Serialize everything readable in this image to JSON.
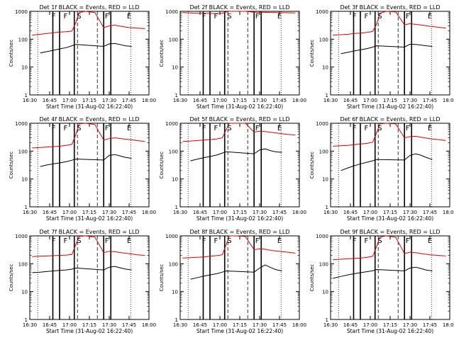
{
  "figure": {
    "background": "#ffffff",
    "colors": {
      "events": "#000000",
      "lld": "#e00000",
      "axes": "#000000"
    },
    "xlabel": "Start Time (31-Aug-02 16:22:40)",
    "ylabel": "Counts/sec",
    "x_tick_labels": [
      "16:30",
      "16:45",
      "17:00",
      "17:15",
      "17:30",
      "17:45",
      "18:00"
    ],
    "y_tick_labels": [
      "1",
      "10",
      "100",
      "1000"
    ],
    "markers": [
      "F",
      "F",
      "S",
      "F",
      "E"
    ]
  },
  "chart_data": [
    {
      "type": "line",
      "title": "Det 1f BLACK = Events, RED = LLD",
      "xlabel": "Start Time (31-Aug-02 16:22:40)",
      "ylabel": "Counts/sec",
      "x_range_hours": [
        16.5,
        18.0
      ],
      "y_scale": "log",
      "ylim": [
        1,
        1000
      ],
      "series": [
        {
          "name": "Events",
          "color": "#000000",
          "x_hours": [
            16.63,
            16.72,
            16.8,
            16.88,
            16.96,
            17.03,
            17.08,
            17.43,
            17.5,
            17.57,
            17.63,
            17.7,
            17.78
          ],
          "values": [
            32,
            36,
            40,
            45,
            50,
            58,
            65,
            55,
            68,
            70,
            65,
            58,
            55
          ]
        },
        {
          "name": "LLD",
          "color": "#e00000",
          "x_hours": [
            16.53,
            16.63,
            16.72,
            16.8,
            16.88,
            16.96,
            17.03,
            17.08,
            17.12,
            17.2,
            17.32,
            17.43,
            17.5,
            17.57,
            17.65,
            17.75,
            17.85,
            17.95
          ],
          "values": [
            140,
            150,
            160,
            170,
            180,
            185,
            195,
            400,
            900,
            1000,
            900,
            260,
            300,
            320,
            290,
            260,
            250,
            240
          ]
        }
      ],
      "annotations": [
        "F",
        "F",
        "S",
        "F",
        "E"
      ]
    },
    {
      "type": "line",
      "title": "Det 2f BLACK = Events, RED = LLD",
      "xlabel": "Start Time (31-Aug-02 16:22:40)",
      "ylabel": "Counts/sec",
      "x_range_hours": [
        16.5,
        18.0
      ],
      "y_scale": "log",
      "ylim": [
        1,
        1000
      ],
      "series": [
        {
          "name": "LLD",
          "color": "#e00000",
          "x_hours": [
            16.53,
            16.63,
            16.72,
            16.8,
            16.88,
            16.96,
            17.03,
            17.08,
            17.12,
            17.2,
            17.32,
            17.43,
            17.55,
            17.65,
            17.75,
            17.85,
            17.95
          ],
          "values": [
            900,
            880,
            860,
            850,
            840,
            830,
            860,
            950,
            1000,
            1000,
            1000,
            930,
            920,
            910,
            900,
            890,
            880
          ]
        }
      ],
      "annotations": [
        "F",
        "F",
        "S",
        "F",
        "E"
      ]
    },
    {
      "type": "line",
      "title": "Det 3f BLACK = Events, RED = LLD",
      "xlabel": "Start Time (31-Aug-02 16:22:40)",
      "ylabel": "Counts/sec",
      "x_range_hours": [
        16.5,
        18.0
      ],
      "y_scale": "log",
      "ylim": [
        1,
        1000
      ],
      "series": [
        {
          "name": "Events",
          "color": "#000000",
          "x_hours": [
            16.63,
            16.72,
            16.8,
            16.88,
            16.96,
            17.03,
            17.08,
            17.43,
            17.5,
            17.57,
            17.63,
            17.7,
            17.78
          ],
          "values": [
            30,
            34,
            38,
            42,
            46,
            52,
            58,
            52,
            66,
            65,
            62,
            58,
            55
          ]
        },
        {
          "name": "LLD",
          "color": "#e00000",
          "x_hours": [
            16.53,
            16.63,
            16.72,
            16.8,
            16.88,
            16.96,
            17.03,
            17.08,
            17.12,
            17.2,
            17.32,
            17.43,
            17.5,
            17.57,
            17.65,
            17.75,
            17.85,
            17.95
          ],
          "values": [
            140,
            145,
            150,
            160,
            165,
            175,
            190,
            350,
            850,
            1000,
            950,
            330,
            360,
            340,
            320,
            290,
            270,
            250
          ]
        }
      ],
      "annotations": [
        "F",
        "F",
        "S",
        "F",
        "E"
      ]
    },
    {
      "type": "line",
      "title": "Det 4f BLACK = Events, RED = LLD",
      "xlabel": "Start Time (31-Aug-02 16:22:40)",
      "ylabel": "Counts/sec",
      "x_range_hours": [
        16.5,
        18.0
      ],
      "y_scale": "log",
      "ylim": [
        1,
        1000
      ],
      "series": [
        {
          "name": "Events",
          "color": "#000000",
          "x_hours": [
            16.63,
            16.72,
            16.8,
            16.88,
            16.96,
            17.03,
            17.08,
            17.43,
            17.5,
            17.57,
            17.63,
            17.7,
            17.78
          ],
          "values": [
            28,
            32,
            35,
            38,
            42,
            47,
            52,
            48,
            70,
            75,
            68,
            60,
            55
          ]
        },
        {
          "name": "LLD",
          "color": "#e00000",
          "x_hours": [
            16.53,
            16.63,
            16.72,
            16.8,
            16.88,
            16.96,
            17.03,
            17.08,
            17.12,
            17.2,
            17.32,
            17.43,
            17.5,
            17.57,
            17.65,
            17.75,
            17.85,
            17.95
          ],
          "values": [
            130,
            135,
            140,
            145,
            150,
            160,
            175,
            400,
            950,
            1000,
            900,
            250,
            280,
            300,
            280,
            260,
            240,
            220
          ]
        }
      ],
      "annotations": [
        "F",
        "F",
        "S",
        "F",
        "E"
      ]
    },
    {
      "type": "line",
      "title": "Det 5f BLACK = Events, RED = LLD",
      "xlabel": "Start Time (31-Aug-02 16:22:40)",
      "ylabel": "Counts/sec",
      "x_range_hours": [
        16.5,
        18.0
      ],
      "y_scale": "log",
      "ylim": [
        1,
        1000
      ],
      "series": [
        {
          "name": "Events",
          "color": "#000000",
          "x_hours": [
            16.63,
            16.72,
            16.8,
            16.88,
            16.96,
            17.03,
            17.08,
            17.43,
            17.5,
            17.57,
            17.63,
            17.7,
            17.78
          ],
          "values": [
            45,
            52,
            58,
            65,
            72,
            85,
            95,
            80,
            110,
            120,
            105,
            95,
            90
          ]
        },
        {
          "name": "LLD",
          "color": "#e00000",
          "x_hours": [
            16.53,
            16.63,
            16.72,
            16.8,
            16.88,
            16.96,
            17.03,
            17.08,
            17.12,
            17.2,
            17.32,
            17.43,
            17.5,
            17.57,
            17.65,
            17.75,
            17.85,
            17.95
          ],
          "values": [
            220,
            230,
            240,
            250,
            260,
            275,
            300,
            600,
            1000,
            1000,
            1000,
            480,
            520,
            500,
            470,
            430,
            400,
            380
          ]
        }
      ],
      "annotations": [
        "F",
        "F",
        "S",
        "F",
        "E"
      ]
    },
    {
      "type": "line",
      "title": "Det 6f BLACK = Events, RED = LLD",
      "xlabel": "Start Time (31-Aug-02 16:22:40)",
      "ylabel": "Counts/sec",
      "x_range_hours": [
        16.5,
        18.0
      ],
      "y_scale": "log",
      "ylim": [
        1,
        1000
      ],
      "series": [
        {
          "name": "Events",
          "color": "#000000",
          "x_hours": [
            16.63,
            16.72,
            16.8,
            16.88,
            16.96,
            17.03,
            17.08,
            17.43,
            17.5,
            17.57,
            17.63,
            17.7,
            17.78
          ],
          "values": [
            20,
            25,
            30,
            35,
            40,
            45,
            50,
            48,
            70,
            80,
            72,
            60,
            50
          ]
        },
        {
          "name": "LLD",
          "color": "#e00000",
          "x_hours": [
            16.53,
            16.63,
            16.72,
            16.8,
            16.88,
            16.96,
            17.03,
            17.08,
            17.12,
            17.2,
            17.32,
            17.43,
            17.5,
            17.57,
            17.65,
            17.75,
            17.85,
            17.95
          ],
          "values": [
            150,
            155,
            160,
            170,
            180,
            190,
            210,
            450,
            950,
            1000,
            950,
            300,
            330,
            340,
            310,
            280,
            260,
            240
          ]
        }
      ],
      "annotations": [
        "F",
        "F",
        "S",
        "F",
        "E"
      ]
    },
    {
      "type": "line",
      "title": "Det 7f BLACK = Events, RED = LLD",
      "xlabel": "Start Time (31-Aug-02 16:22:40)",
      "ylabel": "Counts/sec",
      "x_range_hours": [
        16.5,
        18.0
      ],
      "y_scale": "log",
      "ylim": [
        1,
        1000
      ],
      "series": [
        {
          "name": "Events",
          "color": "#000000",
          "x_hours": [
            16.53,
            16.63,
            16.72,
            16.8,
            16.88,
            16.96,
            17.03,
            17.08,
            17.43,
            17.5,
            17.57,
            17.63,
            17.7,
            17.78
          ],
          "values": [
            48,
            50,
            53,
            55,
            58,
            60,
            64,
            70,
            60,
            75,
            80,
            72,
            65,
            60
          ]
        },
        {
          "name": "LLD",
          "color": "#e00000",
          "x_hours": [
            16.53,
            16.63,
            16.72,
            16.8,
            16.88,
            16.96,
            17.03,
            17.08,
            17.12,
            17.2,
            17.32,
            17.43,
            17.5,
            17.57,
            17.65,
            17.75,
            17.85,
            17.95
          ],
          "values": [
            180,
            185,
            190,
            195,
            200,
            205,
            215,
            500,
            950,
            1000,
            900,
            250,
            280,
            270,
            250,
            230,
            210,
            200
          ]
        }
      ],
      "annotations": [
        "F",
        "F",
        "S",
        "F",
        "E"
      ]
    },
    {
      "type": "line",
      "title": "Det 8f BLACK = Events, RED = LLD",
      "xlabel": "Start Time (31-Aug-02 16:22:40)",
      "ylabel": "Counts/sec",
      "x_range_hours": [
        16.5,
        18.0
      ],
      "y_scale": "log",
      "ylim": [
        1,
        1000
      ],
      "series": [
        {
          "name": "Events",
          "color": "#000000",
          "x_hours": [
            16.63,
            16.72,
            16.8,
            16.88,
            16.96,
            17.03,
            17.08,
            17.43,
            17.5,
            17.57,
            17.63,
            17.7,
            17.78
          ],
          "values": [
            28,
            32,
            36,
            40,
            44,
            50,
            55,
            50,
            70,
            90,
            75,
            62,
            55
          ]
        },
        {
          "name": "LLD",
          "color": "#e00000",
          "x_hours": [
            16.53,
            16.63,
            16.72,
            16.8,
            16.88,
            16.96,
            17.03,
            17.08,
            17.12,
            17.2,
            17.32,
            17.43,
            17.5,
            17.57,
            17.65,
            17.75,
            17.85,
            17.95
          ],
          "values": [
            160,
            165,
            170,
            175,
            185,
            195,
            210,
            500,
            1000,
            1000,
            950,
            320,
            340,
            330,
            300,
            280,
            260,
            240
          ]
        }
      ],
      "annotations": [
        "F",
        "F",
        "S",
        "F",
        "E"
      ]
    },
    {
      "type": "line",
      "title": "Det 9f BLACK = Events, RED = LLD",
      "xlabel": "Start Time (31-Aug-02 16:22:40)",
      "ylabel": "Counts/sec",
      "x_range_hours": [
        16.5,
        18.0
      ],
      "y_scale": "log",
      "ylim": [
        1,
        1000
      ],
      "series": [
        {
          "name": "Events",
          "color": "#000000",
          "x_hours": [
            16.53,
            16.63,
            16.72,
            16.8,
            16.88,
            16.96,
            17.03,
            17.08,
            17.43,
            17.5,
            17.57,
            17.63,
            17.7,
            17.78
          ],
          "values": [
            30,
            35,
            40,
            44,
            48,
            52,
            56,
            62,
            55,
            70,
            75,
            68,
            60,
            55
          ]
        },
        {
          "name": "LLD",
          "color": "#e00000",
          "x_hours": [
            16.53,
            16.63,
            16.72,
            16.8,
            16.88,
            16.96,
            17.03,
            17.08,
            17.12,
            17.2,
            17.32,
            17.43,
            17.5,
            17.57,
            17.65,
            17.75,
            17.85,
            17.95
          ],
          "values": [
            140,
            145,
            150,
            155,
            160,
            170,
            185,
            420,
            900,
            1000,
            900,
            230,
            260,
            250,
            230,
            210,
            200,
            190
          ]
        }
      ],
      "annotations": [
        "F",
        "F",
        "S",
        "F",
        "E"
      ]
    }
  ]
}
